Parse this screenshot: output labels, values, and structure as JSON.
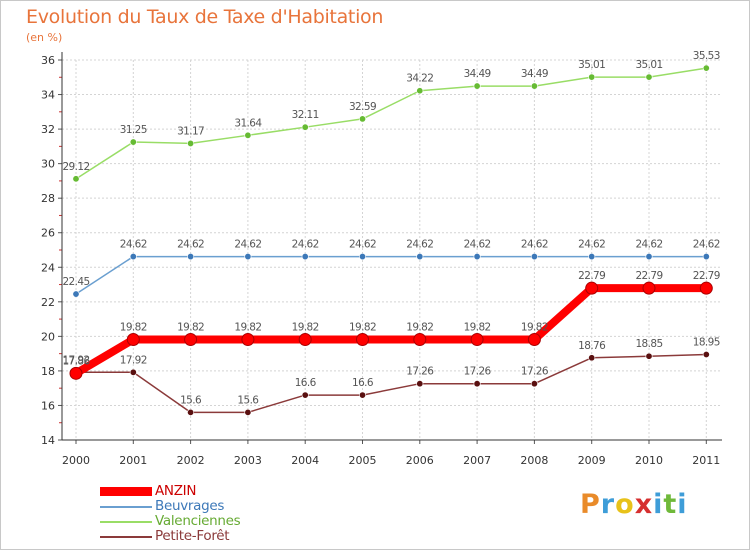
{
  "header": {
    "title": "Evolution du Taux de Taxe d'Habitation",
    "subtitle": "(en %)"
  },
  "chart_data": {
    "type": "line",
    "title": "Evolution du Taux de Taxe d'Habitation",
    "ylabel": "(en %)",
    "xlabel": "",
    "x": [
      "2000",
      "2001",
      "2002",
      "2003",
      "2004",
      "2005",
      "2006",
      "2007",
      "2008",
      "2009",
      "2010",
      "2011"
    ],
    "yticks": [
      "14",
      "16",
      "18",
      "20",
      "22",
      "24",
      "26",
      "28",
      "30",
      "32",
      "34",
      "36"
    ],
    "ylim": [
      14,
      36
    ],
    "grid": true,
    "series": [
      {
        "name": "ANZIN",
        "color": "#ff0000",
        "marker_color": "#dd0000",
        "values": [
          17.86,
          19.82,
          19.82,
          19.82,
          19.82,
          19.82,
          19.82,
          19.82,
          19.82,
          22.79,
          22.79,
          22.79
        ],
        "labels": [
          "17.86",
          "19.82",
          "19.82",
          "19.82",
          "19.82",
          "19.82",
          "19.82",
          "19.82",
          "19.82",
          "22.79",
          "22.79",
          "22.79"
        ]
      },
      {
        "name": "Beuvrages",
        "color": "#6a9fd0",
        "marker_color": "#3c78b8",
        "values": [
          22.45,
          24.62,
          24.62,
          24.62,
          24.62,
          24.62,
          24.62,
          24.62,
          24.62,
          24.62,
          24.62,
          24.62
        ],
        "labels": [
          "22.45",
          "24.62",
          "24.62",
          "24.62",
          "24.62",
          "24.62",
          "24.62",
          "24.62",
          "24.62",
          "24.62",
          "24.62",
          "24.62"
        ]
      },
      {
        "name": "Valenciennes",
        "color": "#99dd66",
        "marker_color": "#66bb33",
        "values": [
          29.12,
          31.25,
          31.17,
          31.64,
          32.11,
          32.59,
          34.22,
          34.49,
          34.49,
          35.01,
          35.01,
          35.53
        ],
        "labels": [
          "29.12",
          "31.25",
          "31.17",
          "31.64",
          "32.11",
          "32.59",
          "34.22",
          "34.49",
          "34.49",
          "35.01",
          "35.01",
          "35.53"
        ]
      },
      {
        "name": "Petite-Forêt",
        "color": "#8b3a3a",
        "marker_color": "#5a1010",
        "values": [
          17.92,
          17.92,
          15.6,
          15.6,
          16.6,
          16.6,
          17.26,
          17.26,
          17.26,
          18.76,
          18.85,
          18.95
        ],
        "labels": [
          "17.92",
          "17.92",
          "15.6",
          "15.6",
          "16.6",
          "16.6",
          "17.26",
          "17.26",
          "17.26",
          "18.76",
          "18.85",
          "18.95"
        ]
      }
    ],
    "legend_position": "bottom-left"
  },
  "legend": {
    "items": [
      "ANZIN",
      "Beuvrages",
      "Valenciennes",
      "Petite-Forêt"
    ]
  },
  "logo": {
    "letters": [
      "P",
      "r",
      "o",
      "x",
      "i",
      "t",
      "i"
    ],
    "colors": [
      "#e98b2a",
      "#3e9dd8",
      "#e8c21a",
      "#d62f2f",
      "#3e9dd8",
      "#6fb93a",
      "#3e9dd8"
    ]
  }
}
